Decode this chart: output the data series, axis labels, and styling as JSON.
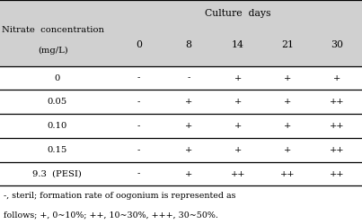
{
  "header_bg": "#d0d0d0",
  "body_bg": "#ffffff",
  "col_header": [
    "0",
    "8",
    "14",
    "21",
    "30"
  ],
  "row_labels": [
    "0",
    "0.05",
    "0.10",
    "0.15",
    "9.3  (PESI)"
  ],
  "table_data": [
    [
      "-",
      "-",
      "+",
      "+",
      "+"
    ],
    [
      "-",
      "+",
      "+",
      "+",
      "++"
    ],
    [
      "-",
      "+",
      "+",
      "+",
      "++"
    ],
    [
      "-",
      "+",
      "+",
      "+",
      "++"
    ],
    [
      "-",
      "+",
      "++",
      "++",
      "++"
    ]
  ],
  "header_label_line1": "Culture  days",
  "header_label_line2": "Nitrate  concentration",
  "header_label_line3": "(mg/L)",
  "footnote_line1": "-, steril; formation rate of oogonium is represented as",
  "footnote_line2": "follows; +, 0~10%; ++, 10~30%, +++, 30~50%.",
  "font_size": 7.2,
  "header_font_size": 7.8,
  "footnote_font_size": 6.8
}
